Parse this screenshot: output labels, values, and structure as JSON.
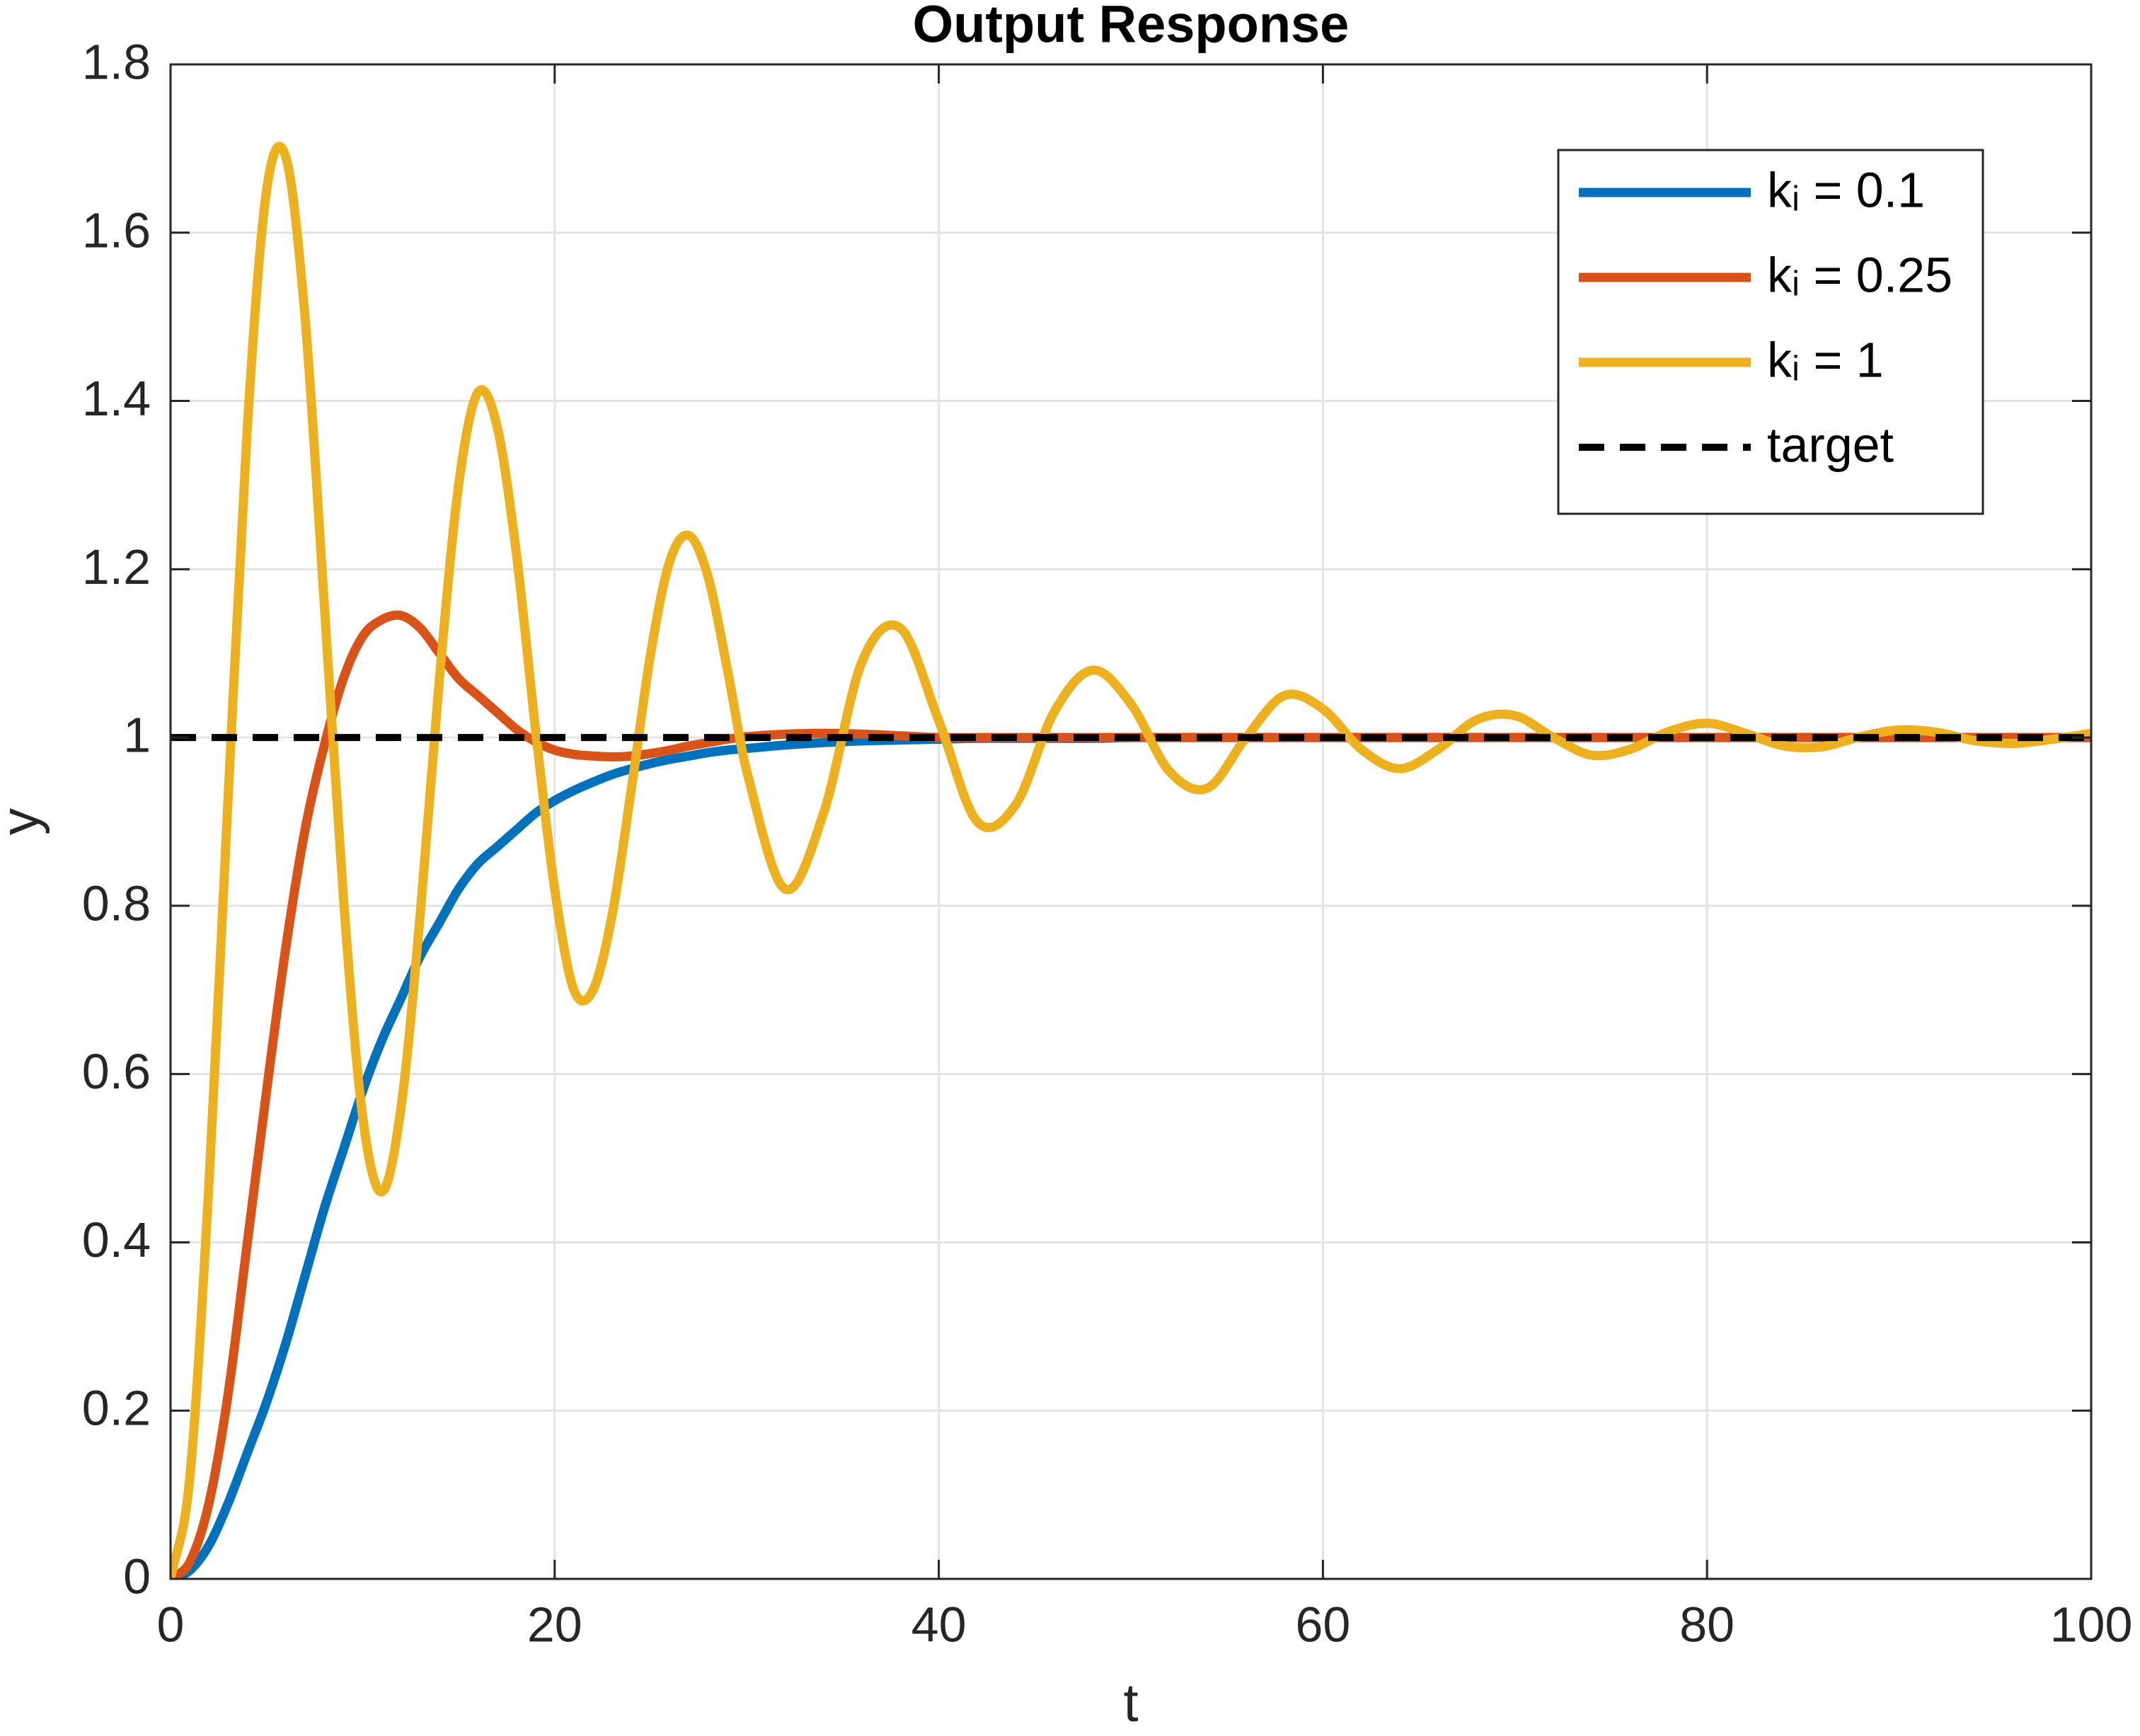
{
  "chart_data": {
    "type": "line",
    "title": "Output Response",
    "x_label": "t",
    "y_label": "y",
    "x": [
      0,
      1,
      2,
      3,
      4,
      5,
      6,
      7,
      8,
      9,
      10,
      11,
      12,
      13,
      14,
      15,
      16,
      17,
      18,
      19,
      20,
      21,
      22,
      23,
      24,
      25,
      26,
      27,
      28,
      29,
      30,
      32,
      34,
      36,
      38,
      40,
      42,
      44,
      46,
      48,
      50,
      52,
      54,
      56,
      58,
      60,
      62,
      64,
      66,
      68,
      70,
      72,
      74,
      76,
      78,
      80,
      82,
      84,
      86,
      88,
      90,
      92,
      94,
      96,
      98,
      100
    ],
    "series": [
      {
        "name": "kᵢ = 0.1",
        "color": "#0072BD",
        "values": [
          0,
          0.01,
          0.04,
          0.09,
          0.15,
          0.21,
          0.28,
          0.36,
          0.44,
          0.51,
          0.58,
          0.64,
          0.69,
          0.74,
          0.78,
          0.82,
          0.85,
          0.87,
          0.89,
          0.91,
          0.925,
          0.937,
          0.947,
          0.956,
          0.963,
          0.969,
          0.974,
          0.978,
          0.982,
          0.985,
          0.987,
          0.991,
          0.994,
          0.996,
          0.997,
          0.998,
          0.999,
          0.999,
          0.999,
          0.999,
          1,
          1,
          1,
          1,
          1,
          1,
          1,
          1,
          1,
          1,
          1,
          1,
          1,
          1,
          1,
          1,
          1,
          1,
          1,
          1,
          1,
          1,
          1,
          1,
          1,
          1
        ]
      },
      {
        "name": "kᵢ = 0.25",
        "color": "#D95319",
        "values": [
          0,
          0.02,
          0.09,
          0.22,
          0.4,
          0.58,
          0.75,
          0.89,
          0.99,
          1.07,
          1.12,
          1.14,
          1.145,
          1.13,
          1.1,
          1.07,
          1.05,
          1.03,
          1.01,
          0.995,
          0.985,
          0.98,
          0.978,
          0.977,
          0.978,
          0.981,
          0.985,
          0.99,
          0.994,
          0.998,
          1.001,
          1.004,
          1.005,
          1.004,
          1.002,
          1,
          1,
          1,
          1,
          1,
          1,
          1,
          1,
          1,
          1,
          1,
          1,
          1,
          1,
          1,
          1,
          1,
          1,
          1,
          1,
          1,
          1,
          1,
          1,
          1,
          1,
          1,
          1,
          1,
          1,
          1
        ]
      },
      {
        "name": "kᵢ = 1",
        "color": "#EDB120",
        "values": [
          0,
          0.12,
          0.47,
          0.93,
          1.37,
          1.65,
          1.69,
          1.5,
          1.16,
          0.81,
          0.55,
          0.46,
          0.56,
          0.79,
          1.07,
          1.3,
          1.41,
          1.37,
          1.22,
          1.01,
          0.82,
          0.7,
          0.7,
          0.79,
          0.94,
          1.1,
          1.21,
          1.24,
          1.19,
          1.08,
          0.96,
          0.82,
          0.91,
          1.09,
          1.13,
          1.02,
          0.9,
          0.92,
          1.03,
          1.08,
          1.04,
          0.96,
          0.94,
          1,
          1.05,
          1.034,
          0.986,
          0.963,
          0.986,
          1.021,
          1.026,
          1,
          0.979,
          0.986,
          1.007,
          1.017,
          1.005,
          0.99,
          0.989,
          1.001,
          1.009,
          1.006,
          0.996,
          0.993,
          0.998,
          1.005
        ]
      },
      {
        "name": "target",
        "color": "#000000",
        "dashed": true,
        "values": [
          1,
          1,
          1,
          1,
          1,
          1,
          1,
          1,
          1,
          1,
          1,
          1,
          1,
          1,
          1,
          1,
          1,
          1,
          1,
          1,
          1,
          1,
          1,
          1,
          1,
          1,
          1,
          1,
          1,
          1,
          1,
          1,
          1,
          1,
          1,
          1,
          1,
          1,
          1,
          1,
          1,
          1,
          1,
          1,
          1,
          1,
          1,
          1,
          1,
          1,
          1,
          1,
          1,
          1,
          1,
          1,
          1,
          1,
          1,
          1,
          1,
          1,
          1,
          1,
          1,
          1
        ]
      }
    ],
    "xlim": [
      0,
      100
    ],
    "xticks": [
      0,
      20,
      40,
      60,
      80,
      100
    ],
    "ylim": [
      0,
      1.8
    ],
    "yticks": [
      0,
      0.2,
      0.4,
      0.6,
      0.8,
      1,
      1.2,
      1.4,
      1.6,
      1.8
    ],
    "grid": true,
    "legend": "upper right"
  }
}
